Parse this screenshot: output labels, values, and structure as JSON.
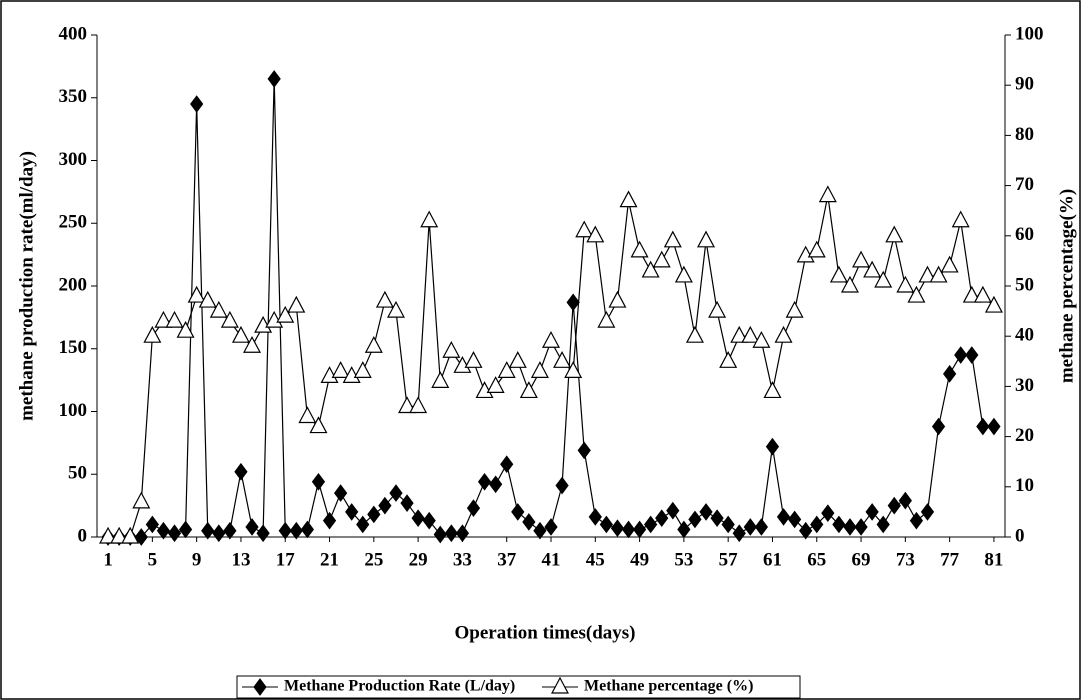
{
  "chart_data": {
    "type": "line",
    "xlabel": "Operation times(days)",
    "ylabel": "methane production rate(ml/day)",
    "y2label": "methane percentage(%)",
    "x": [
      1,
      2,
      3,
      4,
      5,
      6,
      7,
      8,
      9,
      10,
      11,
      12,
      13,
      14,
      15,
      16,
      17,
      18,
      19,
      20,
      21,
      22,
      23,
      24,
      25,
      26,
      27,
      28,
      29,
      30,
      31,
      32,
      33,
      34,
      35,
      36,
      37,
      38,
      39,
      40,
      41,
      42,
      43,
      44,
      45,
      46,
      47,
      48,
      49,
      50,
      51,
      52,
      53,
      54,
      55,
      56,
      57,
      58,
      59,
      60,
      61,
      62,
      63,
      64,
      65,
      66,
      67,
      68,
      69,
      70,
      71,
      72,
      73,
      74,
      75,
      76,
      77,
      78,
      79,
      80,
      81
    ],
    "xlim": [
      0,
      82
    ],
    "xticks": [
      1,
      5,
      9,
      13,
      17,
      21,
      25,
      29,
      33,
      37,
      41,
      45,
      49,
      53,
      57,
      61,
      65,
      69,
      73,
      77,
      81
    ],
    "ylim": [
      0,
      400
    ],
    "yticks": [
      0,
      50,
      100,
      150,
      200,
      250,
      300,
      350,
      400
    ],
    "y2lim": [
      0,
      100
    ],
    "y2ticks": [
      0,
      10,
      20,
      30,
      40,
      50,
      60,
      70,
      80,
      90,
      100
    ],
    "legend": "bottom",
    "series": [
      {
        "name": "Methane Production Rate (L/day)",
        "color": "#000000",
        "marker": "diamond",
        "values": [
          0,
          0,
          0,
          0,
          10,
          5,
          3,
          6,
          345,
          5,
          3,
          5,
          52,
          8,
          3,
          365,
          5,
          5,
          6,
          44,
          13,
          35,
          20,
          10,
          18,
          25,
          35,
          27,
          15,
          13,
          2,
          3,
          3,
          23,
          44,
          42,
          58,
          20,
          12,
          5,
          8,
          41,
          187,
          69,
          16,
          10,
          7,
          6,
          6,
          10,
          15,
          21,
          6,
          14,
          20,
          15,
          10,
          3,
          8,
          8,
          72,
          16,
          14,
          5,
          10,
          19,
          10,
          8,
          8,
          20,
          10,
          25,
          29,
          13,
          20,
          88,
          130,
          145,
          145,
          88,
          88
        ]
      },
      {
        "name": "Methane percentage (%)",
        "color": "#000000",
        "marker": "triangle",
        "axis": "y2",
        "values": [
          0,
          0,
          0,
          7,
          40,
          43,
          43,
          41,
          48,
          47,
          45,
          43,
          40,
          38,
          42,
          43,
          44,
          46,
          24,
          22,
          32,
          33,
          32,
          33,
          38,
          47,
          45,
          26,
          26,
          63,
          31,
          37,
          34,
          35,
          29,
          30,
          33,
          35,
          29,
          33,
          39,
          35,
          33,
          61,
          60,
          43,
          47,
          67,
          57,
          53,
          55,
          59,
          52,
          40,
          59,
          45,
          35,
          40,
          40,
          39,
          29,
          40,
          45,
          56,
          57,
          68,
          52,
          50,
          55,
          53,
          51,
          60,
          50,
          48,
          52,
          52,
          54,
          63,
          48,
          48,
          46
        ]
      }
    ]
  }
}
